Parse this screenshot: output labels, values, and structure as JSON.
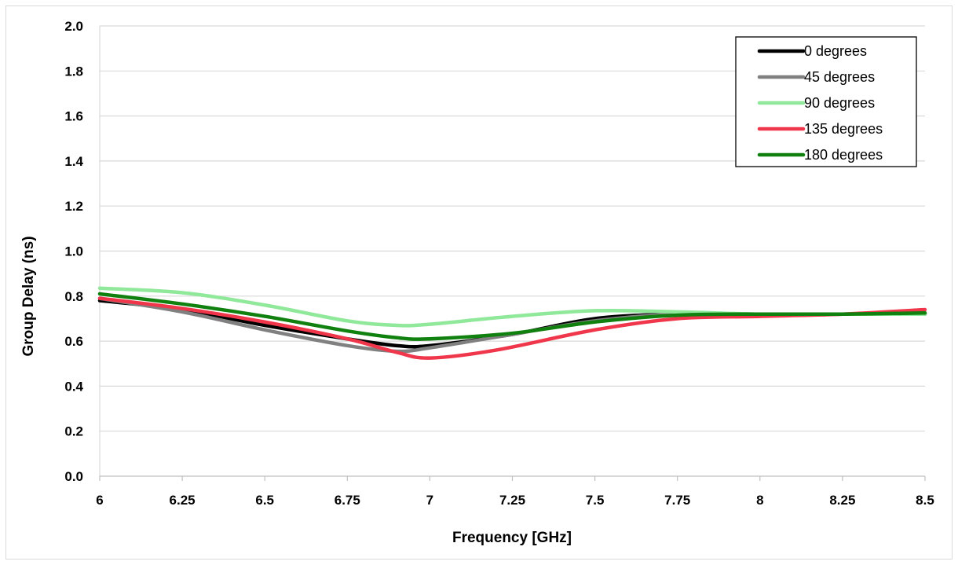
{
  "chart_data": {
    "type": "line",
    "title": "",
    "xlabel": "Frequency [GHz]",
    "ylabel": "Group Delay (ns)",
    "xlim": [
      6,
      8.5
    ],
    "ylim": [
      0,
      2.0
    ],
    "x_ticks": [
      "6",
      "6.25",
      "6.5",
      "6.75",
      "7",
      "7.25",
      "7.5",
      "7.75",
      "8",
      "8.25",
      "8.5"
    ],
    "y_ticks": [
      "0.0",
      "0.2",
      "0.4",
      "0.6",
      "0.8",
      "1.0",
      "1.2",
      "1.4",
      "1.6",
      "1.8",
      "2.0"
    ],
    "grid": "horizontal",
    "legend_position": "top-right",
    "series": [
      {
        "name": "0 degrees",
        "color": "#000000",
        "points": [
          [
            6.0,
            0.78
          ],
          [
            6.25,
            0.74
          ],
          [
            6.5,
            0.67
          ],
          [
            6.75,
            0.61
          ],
          [
            6.9,
            0.58
          ],
          [
            7.0,
            0.58
          ],
          [
            7.25,
            0.63
          ],
          [
            7.5,
            0.7
          ],
          [
            7.75,
            0.72
          ],
          [
            8.0,
            0.72
          ],
          [
            8.25,
            0.72
          ],
          [
            8.5,
            0.72
          ]
        ]
      },
      {
        "name": "45 degrees",
        "color": "#808080",
        "points": [
          [
            6.0,
            0.79
          ],
          [
            6.25,
            0.73
          ],
          [
            6.5,
            0.65
          ],
          [
            6.75,
            0.58
          ],
          [
            6.9,
            0.555
          ],
          [
            7.0,
            0.57
          ],
          [
            7.25,
            0.63
          ],
          [
            7.5,
            0.69
          ],
          [
            7.75,
            0.72
          ],
          [
            8.0,
            0.715
          ],
          [
            8.25,
            0.72
          ],
          [
            8.5,
            0.725
          ]
        ]
      },
      {
        "name": "90 degrees",
        "color": "#90e89a",
        "points": [
          [
            6.0,
            0.835
          ],
          [
            6.25,
            0.815
          ],
          [
            6.5,
            0.76
          ],
          [
            6.75,
            0.69
          ],
          [
            6.9,
            0.67
          ],
          [
            7.0,
            0.675
          ],
          [
            7.25,
            0.71
          ],
          [
            7.5,
            0.735
          ],
          [
            7.75,
            0.73
          ],
          [
            8.0,
            0.72
          ],
          [
            8.25,
            0.72
          ],
          [
            8.5,
            0.72
          ]
        ]
      },
      {
        "name": "135 degrees",
        "color": "#f0364a",
        "points": [
          [
            6.0,
            0.79
          ],
          [
            6.25,
            0.745
          ],
          [
            6.5,
            0.685
          ],
          [
            6.75,
            0.61
          ],
          [
            6.9,
            0.55
          ],
          [
            7.0,
            0.525
          ],
          [
            7.2,
            0.56
          ],
          [
            7.5,
            0.65
          ],
          [
            7.75,
            0.7
          ],
          [
            8.0,
            0.71
          ],
          [
            8.25,
            0.72
          ],
          [
            8.5,
            0.74
          ]
        ]
      },
      {
        "name": "180 degrees",
        "color": "#10800e",
        "points": [
          [
            6.0,
            0.81
          ],
          [
            6.25,
            0.765
          ],
          [
            6.5,
            0.71
          ],
          [
            6.75,
            0.645
          ],
          [
            6.9,
            0.615
          ],
          [
            7.0,
            0.61
          ],
          [
            7.25,
            0.635
          ],
          [
            7.5,
            0.685
          ],
          [
            7.75,
            0.715
          ],
          [
            8.0,
            0.72
          ],
          [
            8.25,
            0.72
          ],
          [
            8.5,
            0.725
          ]
        ]
      }
    ]
  }
}
